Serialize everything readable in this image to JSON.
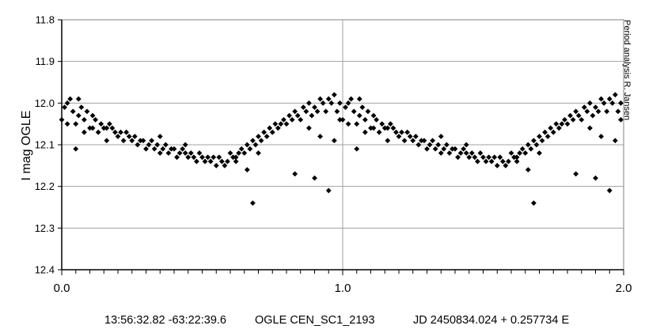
{
  "chart_data": {
    "type": "scatter",
    "ylabel": "I mag OGLE",
    "credit": "Period analysis  R. Jansen",
    "xlim": [
      0.0,
      2.0
    ],
    "ylim": [
      11.8,
      12.4
    ],
    "y_inverted": true,
    "x_ticks": [
      "0.0",
      "1.0",
      "2.0"
    ],
    "y_ticks": [
      "11.8",
      "11.9",
      "12.0",
      "12.1",
      "12.2",
      "12.3",
      "12.4"
    ],
    "grid": "horizontal major lines, vertical line at 1.0",
    "marker": "diamond",
    "marker_color": "#000000",
    "points_phase_0_to_1": [
      [
        0.0,
        12.04
      ],
      [
        0.01,
        12.01
      ],
      [
        0.02,
        12.0
      ],
      [
        0.02,
        12.05
      ],
      [
        0.03,
        11.99
      ],
      [
        0.04,
        12.02
      ],
      [
        0.05,
        12.05
      ],
      [
        0.06,
        12.03
      ],
      [
        0.06,
        11.99
      ],
      [
        0.07,
        12.01
      ],
      [
        0.08,
        12.04
      ],
      [
        0.09,
        12.02
      ],
      [
        0.1,
        12.06
      ],
      [
        0.11,
        12.03
      ],
      [
        0.11,
        12.06
      ],
      [
        0.12,
        12.04
      ],
      [
        0.13,
        12.07
      ],
      [
        0.14,
        12.05
      ],
      [
        0.15,
        12.06
      ],
      [
        0.16,
        12.06
      ],
      [
        0.17,
        12.05
      ],
      [
        0.18,
        12.06
      ],
      [
        0.19,
        12.07
      ],
      [
        0.2,
        12.08
      ],
      [
        0.21,
        12.07
      ],
      [
        0.22,
        12.09
      ],
      [
        0.23,
        12.07
      ],
      [
        0.24,
        12.08
      ],
      [
        0.25,
        12.09
      ],
      [
        0.26,
        12.08
      ],
      [
        0.27,
        12.1
      ],
      [
        0.28,
        12.09
      ],
      [
        0.29,
        12.09
      ],
      [
        0.3,
        12.11
      ],
      [
        0.31,
        12.1
      ],
      [
        0.32,
        12.09
      ],
      [
        0.33,
        12.11
      ],
      [
        0.34,
        12.1
      ],
      [
        0.35,
        12.12
      ],
      [
        0.36,
        12.11
      ],
      [
        0.37,
        12.1
      ],
      [
        0.38,
        12.12
      ],
      [
        0.39,
        12.11
      ],
      [
        0.4,
        12.11
      ],
      [
        0.41,
        12.13
      ],
      [
        0.42,
        12.12
      ],
      [
        0.43,
        12.11
      ],
      [
        0.44,
        12.12
      ],
      [
        0.45,
        12.13
      ],
      [
        0.46,
        12.12
      ],
      [
        0.47,
        12.13
      ],
      [
        0.48,
        12.14
      ],
      [
        0.49,
        12.12
      ],
      [
        0.5,
        12.13
      ],
      [
        0.51,
        12.14
      ],
      [
        0.52,
        12.13
      ],
      [
        0.53,
        12.14
      ],
      [
        0.54,
        12.13
      ],
      [
        0.56,
        12.13
      ],
      [
        0.57,
        12.14
      ],
      [
        0.58,
        12.15
      ],
      [
        0.59,
        12.14
      ],
      [
        0.6,
        12.12
      ],
      [
        0.61,
        12.13
      ],
      [
        0.62,
        12.14
      ],
      [
        0.63,
        12.12
      ],
      [
        0.64,
        12.11
      ],
      [
        0.65,
        12.12
      ],
      [
        0.66,
        12.1
      ],
      [
        0.67,
        12.11
      ],
      [
        0.68,
        12.09
      ],
      [
        0.69,
        12.1
      ],
      [
        0.7,
        12.08
      ],
      [
        0.71,
        12.09
      ],
      [
        0.72,
        12.07
      ],
      [
        0.73,
        12.08
      ],
      [
        0.74,
        12.06
      ],
      [
        0.75,
        12.07
      ],
      [
        0.76,
        12.05
      ],
      [
        0.77,
        12.06
      ],
      [
        0.78,
        12.05
      ],
      [
        0.79,
        12.04
      ],
      [
        0.8,
        12.05
      ],
      [
        0.81,
        12.03
      ],
      [
        0.82,
        12.04
      ],
      [
        0.83,
        12.02
      ],
      [
        0.84,
        12.03
      ],
      [
        0.85,
        12.04
      ],
      [
        0.86,
        12.01
      ],
      [
        0.87,
        12.02
      ],
      [
        0.88,
        12.0
      ],
      [
        0.89,
        12.03
      ],
      [
        0.9,
        12.01
      ],
      [
        0.91,
        12.02
      ],
      [
        0.92,
        11.99
      ],
      [
        0.93,
        12.0
      ],
      [
        0.94,
        12.02
      ],
      [
        0.95,
        11.99
      ],
      [
        0.96,
        12.0
      ],
      [
        0.97,
        11.98
      ],
      [
        0.98,
        12.02
      ],
      [
        0.99,
        12.0
      ],
      [
        0.99,
        12.04
      ],
      [
        0.05,
        12.11
      ],
      [
        0.62,
        12.13
      ],
      [
        0.66,
        12.16
      ],
      [
        0.68,
        12.24
      ],
      [
        0.83,
        12.17
      ],
      [
        0.9,
        12.18
      ],
      [
        0.95,
        12.21
      ],
      [
        0.97,
        12.09
      ],
      [
        0.92,
        12.08
      ],
      [
        0.88,
        12.06
      ],
      [
        0.08,
        12.07
      ],
      [
        0.16,
        12.09
      ],
      [
        0.35,
        12.08
      ],
      [
        0.44,
        12.1
      ],
      [
        0.55,
        12.15
      ],
      [
        0.7,
        12.12
      ]
    ]
  }
}
